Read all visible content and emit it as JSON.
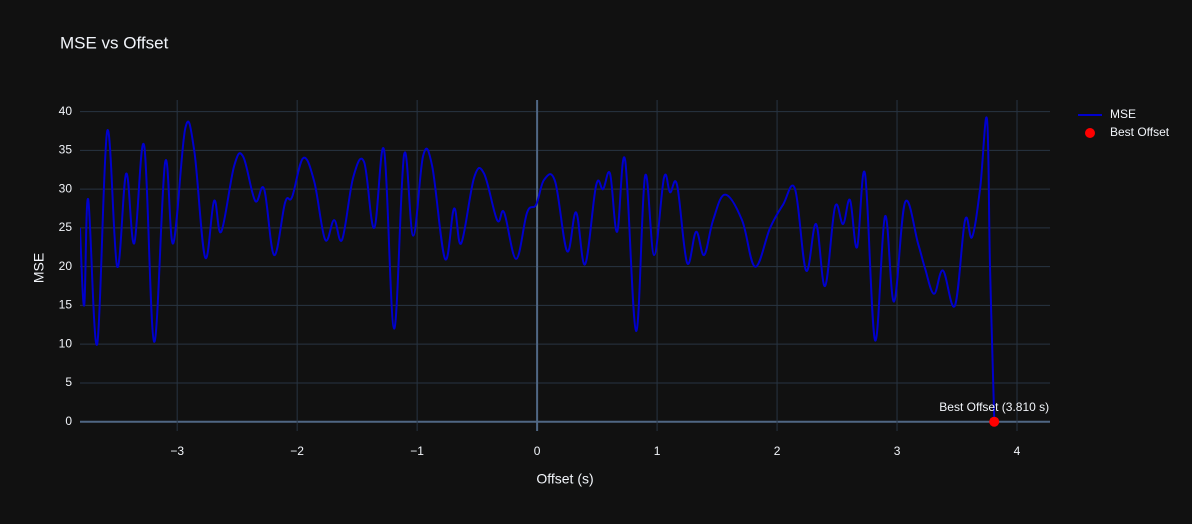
{
  "chart_data": {
    "type": "line",
    "title": "MSE vs Offset",
    "x_label": "Offset (s)",
    "y_label": "MSE",
    "xlim": [
      -3.81,
      4.275
    ],
    "ylim": [
      -1.2,
      41.5
    ],
    "xticks": [
      {
        "value": -3,
        "label": "−3"
      },
      {
        "value": -2,
        "label": "−2"
      },
      {
        "value": -1,
        "label": "−1"
      },
      0,
      1,
      2,
      3,
      4
    ],
    "yticks": [
      0,
      5,
      10,
      15,
      20,
      25,
      30,
      35,
      40
    ],
    "grid": true,
    "legend": "top-right",
    "series": [
      {
        "name": "MSE",
        "color": "#0000cd",
        "mode": "lines",
        "x": [
          -3.81,
          -3.775,
          -3.742,
          -3.667,
          -3.583,
          -3.5,
          -3.425,
          -3.358,
          -3.275,
          -3.192,
          -3.1,
          -3.033,
          -2.933,
          -2.858,
          -2.767,
          -2.692,
          -2.633,
          -2.525,
          -2.45,
          -2.35,
          -2.275,
          -2.192,
          -2.1,
          -2.042,
          -1.95,
          -1.858,
          -1.767,
          -1.692,
          -1.625,
          -1.533,
          -1.442,
          -1.358,
          -1.275,
          -1.192,
          -1.108,
          -1.033,
          -0.95,
          -0.875,
          -0.767,
          -0.692,
          -0.633,
          -0.525,
          -0.442,
          -0.333,
          -0.275,
          -0.175,
          -0.083,
          -0.008,
          0.058,
          0.15,
          0.25,
          0.325,
          0.4,
          0.492,
          0.55,
          0.608,
          0.667,
          0.733,
          0.825,
          0.9,
          0.975,
          1.058,
          1.108,
          1.167,
          1.25,
          1.325,
          1.392,
          1.467,
          1.567,
          1.708,
          1.817,
          1.942,
          2.05,
          2.15,
          2.242,
          2.325,
          2.4,
          2.483,
          2.55,
          2.608,
          2.667,
          2.733,
          2.817,
          2.9,
          2.975,
          3.067,
          3.175,
          3.233,
          3.308,
          3.383,
          3.483,
          3.567,
          3.625,
          3.692,
          3.75,
          3.775,
          3.81
        ],
        "values": [
          25,
          15,
          28.7,
          10,
          37.5,
          20,
          32,
          23,
          35.6,
          10.3,
          33.5,
          23,
          37.8,
          35,
          21.2,
          28.5,
          24.5,
          33,
          34.2,
          28.5,
          30,
          21.5,
          28.3,
          29,
          34,
          31,
          23.5,
          26,
          23.5,
          31.5,
          33.5,
          25,
          35,
          12,
          34.5,
          24,
          34.3,
          33,
          21,
          27.5,
          23,
          31.5,
          32,
          26,
          27,
          21,
          27,
          28,
          31.2,
          31,
          22,
          27,
          20.3,
          30.5,
          30,
          32,
          24.5,
          33.8,
          11.7,
          31.7,
          21.5,
          31.5,
          29.6,
          30.5,
          20.5,
          24.5,
          21.5,
          26,
          29.3,
          26,
          20,
          25,
          28,
          30,
          19.5,
          25.5,
          17.5,
          27.7,
          25.5,
          28.6,
          22.5,
          32,
          10.5,
          26.5,
          15.5,
          28.3,
          23,
          19.8,
          16.5,
          19.5,
          15,
          26,
          23.8,
          30,
          39,
          20,
          0.5
        ]
      },
      {
        "name": "Best Offset",
        "color": "#ff0000",
        "mode": "markers",
        "x": [
          3.81
        ],
        "values": [
          0
        ]
      }
    ],
    "annotation": "Best Offset (3.810 s)"
  }
}
